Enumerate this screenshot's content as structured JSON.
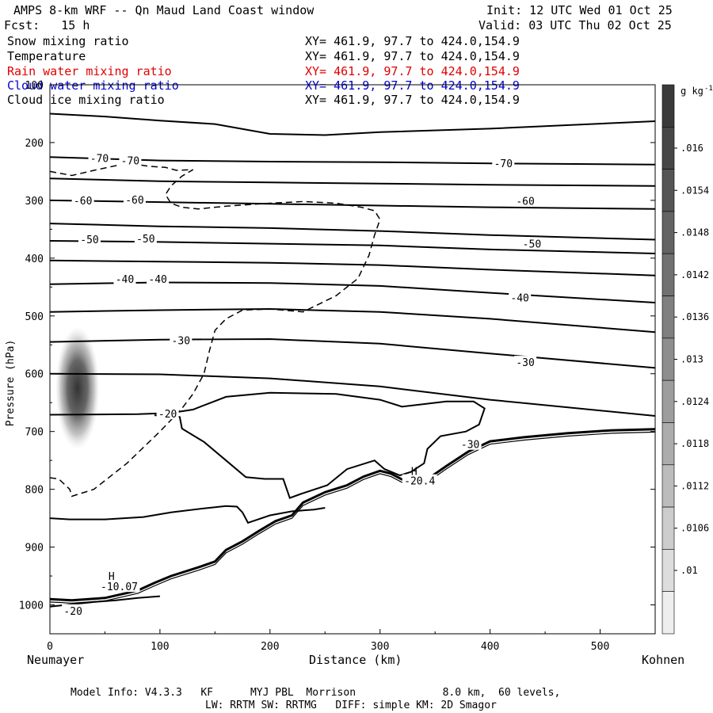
{
  "header": {
    "title": "AMPS 8-km WRF -- Qn Maud Land Coast window",
    "fcst": "Fcst:   15 h",
    "init": "Init: 12 UTC Wed 01 Oct 25",
    "valid": "Valid: 03 UTC Thu 02 Oct 25"
  },
  "legend": [
    {
      "label": "Snow mixing ratio",
      "xy": "XY= 461.9, 97.7 to 424.0,154.9",
      "color": "#000000"
    },
    {
      "label": "Temperature",
      "xy": "XY= 461.9, 97.7 to 424.0,154.9",
      "color": "#000000"
    },
    {
      "label": "Rain water mixing ratio",
      "xy": "XY= 461.9, 97.7 to 424.0,154.9",
      "color": "#e00000"
    },
    {
      "label": "Cloud water mixing ratio",
      "xy": "XY= 461.9, 97.7 to 424.0,154.9",
      "color": "#0000cc"
    },
    {
      "label": "Cloud ice mixing ratio",
      "xy": "XY= 461.9, 97.7 to 424.0,154.9",
      "color": "#000000"
    }
  ],
  "footer": {
    "line1": "Model Info: V4.3.3   KF      MYJ PBL  Morrison              8.0 km,  60 levels,",
    "line2": "LW: RRTM SW: RRTMG   DIFF: simple KM: 2D Smagor"
  },
  "chart_data": {
    "type": "cross-section",
    "xlabel": "Distance (km)",
    "ylabel": "Pressure (hPa)",
    "x_start_label": "Neumayer",
    "x_end_label": "Kohnen",
    "xlim": [
      0,
      550
    ],
    "ylim": [
      1050,
      100
    ],
    "x_ticks": [
      0,
      100,
      200,
      300,
      400,
      500
    ],
    "y_ticks": [
      100,
      200,
      300,
      400,
      500,
      600,
      700,
      800,
      900,
      1000
    ],
    "colorbar": {
      "unit": "g kg",
      "unit_exp": "-1",
      "labels": [
        ".016",
        ".0154",
        ".0148",
        ".0142",
        ".0136",
        ".013",
        ".0124",
        ".0118",
        ".0112",
        ".0106",
        ".01"
      ],
      "level_positions": [
        1.5,
        2.5,
        3.5,
        4.5,
        5.5,
        6.5,
        7.5,
        8.5,
        9.5,
        10.5,
        11.5
      ],
      "n_boxes": 13,
      "shades": [
        "#3a3a3a",
        "#474747",
        "#555555",
        "#636363",
        "#717171",
        "#808080",
        "#8e8e8e",
        "#9d9d9d",
        "#acacac",
        "#bcbcbc",
        "#cccccc",
        "#dddddd",
        "#eeeeee"
      ]
    },
    "temperature_labels": [
      {
        "text": "-70",
        "x": 45,
        "p": 227
      },
      {
        "text": "-70",
        "x": 73,
        "p": 231
      },
      {
        "text": "-70",
        "x": 412,
        "p": 236
      },
      {
        "text": "-60",
        "x": 30,
        "p": 300
      },
      {
        "text": "-60",
        "x": 77,
        "p": 299
      },
      {
        "text": "-60",
        "x": 432,
        "p": 301
      },
      {
        "text": "-50",
        "x": 36,
        "p": 367
      },
      {
        "text": "-50",
        "x": 87,
        "p": 366
      },
      {
        "text": "-50",
        "x": 438,
        "p": 375
      },
      {
        "text": "-40",
        "x": 68,
        "p": 436
      },
      {
        "text": "-40",
        "x": 98,
        "p": 436
      },
      {
        "text": "-40",
        "x": 427,
        "p": 468
      },
      {
        "text": "-30",
        "x": 119,
        "p": 542
      },
      {
        "text": "-30",
        "x": 432,
        "p": 580
      },
      {
        "text": "-30",
        "x": 382,
        "p": 722
      },
      {
        "text": "-20",
        "x": 107,
        "p": 669
      },
      {
        "text": "-20.4",
        "x": 336,
        "p": 785
      },
      {
        "text": "-20",
        "x": 21,
        "p": 1010
      },
      {
        "text": "-10.07",
        "x": 63,
        "p": 968
      }
    ],
    "high_labels": [
      {
        "text": "H",
        "x": 331,
        "p": 768
      },
      {
        "text": "H",
        "x": 56,
        "p": 950
      }
    ],
    "isotherms": [
      [
        [
          0,
          150
        ],
        [
          50,
          155
        ],
        [
          100,
          162
        ],
        [
          150,
          168
        ],
        [
          200,
          185
        ],
        [
          250,
          187
        ],
        [
          300,
          182
        ],
        [
          400,
          176
        ],
        [
          550,
          163
        ]
      ],
      [
        [
          0,
          225
        ],
        [
          100,
          231
        ],
        [
          200,
          233
        ],
        [
          300,
          234
        ],
        [
          400,
          236
        ],
        [
          550,
          238
        ]
      ],
      [
        [
          0,
          262
        ],
        [
          100,
          267
        ],
        [
          200,
          269
        ],
        [
          300,
          271
        ],
        [
          400,
          273
        ],
        [
          550,
          275
        ]
      ],
      [
        [
          0,
          300
        ],
        [
          100,
          303
        ],
        [
          200,
          306
        ],
        [
          300,
          309
        ],
        [
          400,
          312
        ],
        [
          550,
          315
        ]
      ],
      [
        [
          0,
          340
        ],
        [
          100,
          345
        ],
        [
          200,
          348
        ],
        [
          300,
          353
        ],
        [
          400,
          360
        ],
        [
          550,
          368
        ]
      ],
      [
        [
          0,
          370
        ],
        [
          100,
          372
        ],
        [
          200,
          375
        ],
        [
          300,
          378
        ],
        [
          400,
          385
        ],
        [
          550,
          392
        ]
      ],
      [
        [
          0,
          404
        ],
        [
          100,
          406
        ],
        [
          200,
          408
        ],
        [
          300,
          412
        ],
        [
          400,
          420
        ],
        [
          550,
          430
        ]
      ],
      [
        [
          0,
          445
        ],
        [
          100,
          442
        ],
        [
          200,
          443
        ],
        [
          300,
          448
        ],
        [
          400,
          460
        ],
        [
          550,
          477
        ]
      ],
      [
        [
          0,
          493
        ],
        [
          100,
          490
        ],
        [
          200,
          488
        ],
        [
          300,
          493
        ],
        [
          400,
          505
        ],
        [
          550,
          528
        ]
      ],
      [
        [
          0,
          545
        ],
        [
          100,
          541
        ],
        [
          200,
          540
        ],
        [
          300,
          548
        ],
        [
          400,
          565
        ],
        [
          550,
          590
        ]
      ],
      [
        [
          0,
          600
        ],
        [
          100,
          601
        ],
        [
          200,
          608
        ],
        [
          300,
          622
        ],
        [
          400,
          645
        ],
        [
          550,
          673
        ]
      ],
      [
        [
          0,
          671
        ],
        [
          80,
          670
        ],
        [
          110,
          668
        ],
        [
          130,
          662
        ],
        [
          160,
          640
        ],
        [
          200,
          633
        ],
        [
          260,
          635
        ],
        [
          300,
          645
        ],
        [
          320,
          657
        ],
        [
          360,
          648
        ],
        [
          385,
          648
        ],
        [
          395,
          660
        ],
        [
          390,
          688
        ],
        [
          378,
          700
        ],
        [
          355,
          708
        ],
        [
          343,
          730
        ],
        [
          340,
          755
        ],
        [
          328,
          770
        ],
        [
          318,
          776
        ],
        [
          304,
          765
        ],
        [
          295,
          750
        ],
        [
          270,
          765
        ],
        [
          252,
          793
        ],
        [
          228,
          808
        ],
        [
          218,
          815
        ],
        [
          212,
          782
        ],
        [
          195,
          782
        ],
        [
          178,
          779
        ],
        [
          160,
          750
        ],
        [
          140,
          718
        ],
        [
          120,
          695
        ],
        [
          118,
          675
        ],
        [
          110,
          672
        ],
        [
          95,
          672
        ]
      ],
      [
        [
          0,
          850
        ],
        [
          18,
          852
        ],
        [
          50,
          852
        ],
        [
          85,
          848
        ],
        [
          110,
          840
        ],
        [
          140,
          833
        ],
        [
          160,
          829
        ],
        [
          170,
          830
        ],
        [
          175,
          840
        ],
        [
          180,
          858
        ],
        [
          200,
          845
        ],
        [
          220,
          838
        ],
        [
          240,
          835
        ],
        [
          250,
          832
        ]
      ],
      [
        [
          0,
          1003
        ],
        [
          20,
          999
        ],
        [
          40,
          995
        ],
        [
          60,
          992
        ],
        [
          80,
          988
        ],
        [
          100,
          985
        ]
      ]
    ],
    "terrain": [
      [
        0,
        990
      ],
      [
        20,
        992
      ],
      [
        50,
        988
      ],
      [
        80,
        975
      ],
      [
        95,
        962
      ],
      [
        110,
        950
      ],
      [
        135,
        935
      ],
      [
        150,
        925
      ],
      [
        160,
        905
      ],
      [
        175,
        890
      ],
      [
        190,
        872
      ],
      [
        205,
        855
      ],
      [
        220,
        845
      ],
      [
        230,
        823
      ],
      [
        250,
        805
      ],
      [
        270,
        793
      ],
      [
        285,
        778
      ],
      [
        300,
        768
      ],
      [
        310,
        773
      ],
      [
        320,
        783
      ],
      [
        335,
        787
      ],
      [
        345,
        780
      ],
      [
        360,
        760
      ],
      [
        380,
        735
      ],
      [
        400,
        717
      ],
      [
        430,
        710
      ],
      [
        470,
        703
      ],
      [
        510,
        698
      ],
      [
        550,
        696
      ]
    ],
    "dashed_contour": [
      [
        0,
        780
      ],
      [
        8,
        782
      ],
      [
        18,
        800
      ],
      [
        20,
        812
      ],
      [
        40,
        800
      ],
      [
        70,
        755
      ],
      [
        100,
        700
      ],
      [
        110,
        680
      ],
      [
        120,
        660
      ],
      [
        130,
        635
      ],
      [
        140,
        600
      ],
      [
        145,
        560
      ],
      [
        150,
        525
      ],
      [
        160,
        505
      ],
      [
        175,
        490
      ],
      [
        200,
        488
      ],
      [
        230,
        493
      ],
      [
        260,
        465
      ],
      [
        280,
        435
      ],
      [
        290,
        395
      ],
      [
        295,
        360
      ],
      [
        300,
        333
      ],
      [
        295,
        318
      ],
      [
        283,
        312
      ],
      [
        260,
        305
      ],
      [
        230,
        302
      ],
      [
        200,
        305
      ],
      [
        160,
        310
      ],
      [
        135,
        315
      ],
      [
        120,
        312
      ],
      [
        110,
        305
      ],
      [
        105,
        290
      ],
      [
        110,
        275
      ],
      [
        120,
        258
      ],
      [
        130,
        247
      ],
      [
        115,
        248
      ],
      [
        105,
        243
      ],
      [
        90,
        241
      ],
      [
        80,
        238
      ],
      [
        60,
        240
      ],
      [
        40,
        248
      ],
      [
        20,
        257
      ],
      [
        0,
        250
      ]
    ],
    "snow_blob": {
      "x": 25,
      "p": 625
    }
  }
}
